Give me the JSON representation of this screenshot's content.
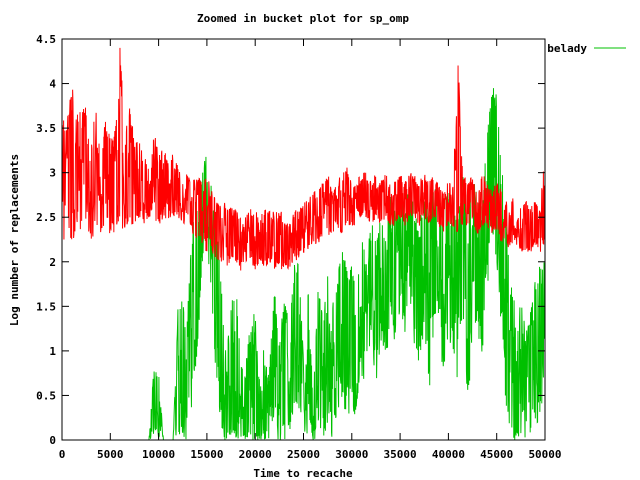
{
  "chart_data": {
    "type": "line",
    "title": "Zoomed in bucket plot for sp_omp",
    "xlabel": "Time to recache",
    "ylabel": "Log number of replacements",
    "xlim": [
      0,
      50000
    ],
    "ylim": [
      0,
      4.5
    ],
    "xticks": [
      "0",
      "5000",
      "10000",
      "15000",
      "20000",
      "25000",
      "30000",
      "35000",
      "40000",
      "45000",
      "50000"
    ],
    "yticks": [
      "0",
      "0.5",
      "1",
      "1.5",
      "2",
      "2.5",
      "3",
      "3.5",
      "4",
      "4.5"
    ],
    "grid": false,
    "legend_position": "top-right",
    "series": [
      {
        "name": "belady",
        "color": "#00c000",
        "x": [
          0,
          500,
          1000,
          1500,
          2000,
          2500,
          3000,
          3500,
          4000,
          4500,
          5000,
          5500,
          6000,
          6500,
          7000,
          7500,
          8000,
          8500,
          9000,
          9500,
          10000,
          10500,
          11000,
          11500,
          12000,
          12500,
          13000,
          13500,
          14000,
          14500,
          15000,
          15500,
          16000,
          16500,
          17000,
          17500,
          18000,
          18500,
          19000,
          19500,
          20000,
          20500,
          21000,
          21500,
          22000,
          22500,
          23000,
          23500,
          24000,
          24500,
          25000,
          25500,
          26000,
          26500,
          27000,
          27500,
          28000,
          28500,
          29000,
          29500,
          30000,
          30500,
          31000,
          31500,
          32000,
          32500,
          33000,
          33500,
          34000,
          34500,
          35000,
          35500,
          36000,
          36500,
          37000,
          37500,
          38000,
          38500,
          39000,
          39500,
          40000,
          40500,
          41000,
          41500,
          42000,
          42500,
          43000,
          43500,
          44000,
          44500,
          45000,
          45500,
          46000,
          46500,
          47000,
          47500,
          48000,
          48500,
          49000,
          49500,
          50000
        ],
        "y": [
          0,
          0,
          0,
          0,
          0,
          0,
          0,
          0,
          0,
          0,
          0,
          0,
          0,
          0,
          0,
          0,
          0,
          0,
          0,
          0.8,
          0.3,
          0,
          0,
          0,
          0.8,
          0.6,
          1.2,
          2.0,
          2.4,
          2.8,
          3.2,
          2.4,
          2.0,
          1.2,
          0.5,
          0.9,
          1.3,
          0.4,
          0.2,
          0.8,
          0.5,
          0.1,
          0.7,
          0.3,
          1.1,
          0.5,
          1.0,
          0.6,
          1.6,
          1.4,
          0.3,
          1.2,
          0.1,
          1.1,
          0.6,
          1.4,
          0.8,
          1.2,
          1.8,
          1.3,
          1.5,
          1.1,
          1.9,
          1.4,
          2.1,
          1.6,
          2.2,
          1.7,
          2.4,
          2.0,
          2.5,
          2.1,
          2.6,
          2.2,
          1.8,
          2.3,
          1.9,
          2.6,
          2.5,
          1.6,
          2.4,
          2.0,
          1.8,
          2.7,
          1.5,
          2.5,
          2.3,
          1.8,
          3.0,
          3.6,
          3.2,
          2.5,
          1.6,
          1.2,
          0.6,
          1.0,
          0.4,
          0.8,
          1.2,
          1.5,
          1.9
        ],
        "y_min": [
          0,
          0,
          0,
          0,
          0,
          0,
          0,
          0,
          0,
          0,
          0,
          0,
          0,
          0,
          0,
          0,
          0,
          0,
          0,
          0,
          0,
          0,
          0,
          0,
          0,
          0,
          0,
          0.4,
          1.0,
          1.8,
          2.2,
          1.6,
          0.6,
          0,
          0,
          0,
          0,
          0,
          0,
          0,
          0,
          0,
          0,
          0,
          0,
          0,
          0,
          0,
          0.2,
          0.3,
          0,
          0.1,
          0,
          0,
          0,
          0.1,
          0,
          0.2,
          0.4,
          0.3,
          0.2,
          0.3,
          0.7,
          0.4,
          1.0,
          0.6,
          1.1,
          0.8,
          1.3,
          1.0,
          1.5,
          1.2,
          1.6,
          1.0,
          0.8,
          1.1,
          0.5,
          1.3,
          1.4,
          0.6,
          1.0,
          0.9,
          0.6,
          1.5,
          0.3,
          1.2,
          1.3,
          0.8,
          1.6,
          2.4,
          2.0,
          1.2,
          0.3,
          0,
          0,
          0,
          0,
          0,
          0,
          0.2,
          0.8
        ],
        "y_max": [
          0,
          0,
          0,
          0,
          0,
          0,
          0,
          0,
          0,
          0,
          0,
          0,
          0,
          0,
          0,
          0,
          0,
          0,
          0,
          0.8,
          0.8,
          0,
          0,
          0,
          1.5,
          1.6,
          1.5,
          2.4,
          2.8,
          3.0,
          3.25,
          2.8,
          2.4,
          1.8,
          0.9,
          1.5,
          1.8,
          0.9,
          0.8,
          1.5,
          1.4,
          0.6,
          1.3,
          0.9,
          1.7,
          1.1,
          1.6,
          1.3,
          2.0,
          2.0,
          0.9,
          1.7,
          0.6,
          1.8,
          1.4,
          2.0,
          1.6,
          1.8,
          2.2,
          1.9,
          2.0,
          1.8,
          2.4,
          2.0,
          2.5,
          2.2,
          2.6,
          2.4,
          2.8,
          2.6,
          2.9,
          2.6,
          2.9,
          2.6,
          2.4,
          2.8,
          2.6,
          2.9,
          2.9,
          2.6,
          2.9,
          2.6,
          2.5,
          3.0,
          2.6,
          3.0,
          2.8,
          2.6,
          3.5,
          4.0,
          3.9,
          3.2,
          2.4,
          1.9,
          1.4,
          1.7,
          1.2,
          1.5,
          1.8,
          2.0,
          2.0
        ]
      },
      {
        "color": "#ff0000",
        "x": [
          0,
          500,
          1000,
          1500,
          2000,
          2500,
          3000,
          3500,
          4000,
          4500,
          5000,
          5500,
          6000,
          6500,
          7000,
          7500,
          8000,
          8500,
          9000,
          9500,
          10000,
          10500,
          11000,
          11500,
          12000,
          12500,
          13000,
          13500,
          14000,
          14500,
          15000,
          15500,
          16000,
          16500,
          17000,
          17500,
          18000,
          18500,
          19000,
          19500,
          20000,
          20500,
          21000,
          21500,
          22000,
          22500,
          23000,
          23500,
          24000,
          24500,
          25000,
          25500,
          26000,
          26500,
          27000,
          27500,
          28000,
          28500,
          29000,
          29500,
          30000,
          30500,
          31000,
          31500,
          32000,
          32500,
          33000,
          33500,
          34000,
          34500,
          35000,
          35500,
          36000,
          36500,
          37000,
          37500,
          38000,
          38500,
          39000,
          39500,
          40000,
          40500,
          41000,
          41500,
          42000,
          42500,
          43000,
          43500,
          44000,
          44500,
          45000,
          45500,
          46000,
          46500,
          47000,
          47500,
          48000,
          48500,
          49000,
          49500,
          50000
        ],
        "y": [
          2.8,
          3.0,
          2.9,
          2.8,
          2.9,
          3.0,
          2.8,
          2.9,
          2.8,
          2.9,
          2.8,
          2.8,
          2.9,
          2.8,
          2.9,
          2.7,
          2.9,
          2.8,
          2.8,
          2.9,
          2.7,
          2.8,
          2.7,
          2.8,
          2.7,
          2.6,
          2.7,
          2.6,
          2.7,
          2.6,
          2.6,
          2.5,
          2.4,
          2.4,
          2.3,
          2.3,
          2.3,
          2.2,
          2.2,
          2.3,
          2.2,
          2.2,
          2.2,
          2.3,
          2.2,
          2.3,
          2.2,
          2.1,
          2.3,
          2.3,
          2.4,
          2.4,
          2.5,
          2.5,
          2.6,
          2.6,
          2.5,
          2.6,
          2.6,
          2.7,
          2.6,
          2.6,
          2.7,
          2.7,
          2.6,
          2.7,
          2.6,
          2.7,
          2.6,
          2.6,
          2.7,
          2.6,
          2.7,
          2.7,
          2.6,
          2.7,
          2.6,
          2.7,
          2.6,
          2.5,
          2.6,
          2.6,
          2.5,
          2.7,
          2.6,
          2.6,
          2.5,
          2.7,
          2.6,
          2.5,
          2.6,
          2.5,
          2.4,
          2.4,
          2.5,
          2.3,
          2.4,
          2.3,
          2.4,
          2.3,
          2.4
        ],
        "y_min": [
          2.3,
          2.1,
          2.2,
          2.3,
          2.3,
          2.4,
          2.2,
          2.3,
          2.3,
          2.4,
          2.3,
          2.3,
          2.4,
          2.3,
          2.4,
          2.4,
          2.5,
          2.4,
          2.5,
          2.5,
          2.4,
          2.5,
          2.4,
          2.5,
          2.5,
          2.4,
          2.5,
          2.3,
          2.2,
          2.2,
          2.1,
          2.1,
          2.0,
          2.0,
          1.9,
          2.0,
          2.0,
          1.9,
          2.0,
          2.0,
          1.9,
          2.0,
          1.9,
          2.0,
          1.9,
          1.9,
          1.9,
          1.9,
          2.0,
          2.0,
          2.1,
          2.1,
          2.2,
          2.2,
          2.3,
          2.3,
          2.3,
          2.4,
          2.3,
          2.4,
          2.4,
          2.4,
          2.5,
          2.5,
          2.4,
          2.5,
          2.4,
          2.5,
          2.4,
          2.4,
          2.5,
          2.4,
          2.5,
          2.5,
          2.4,
          2.5,
          2.4,
          2.5,
          2.4,
          2.3,
          2.4,
          2.4,
          2.3,
          2.4,
          2.4,
          2.4,
          2.3,
          2.4,
          2.4,
          2.3,
          2.3,
          2.2,
          2.2,
          2.1,
          2.2,
          2.1,
          2.1,
          2.1,
          2.2,
          2.1,
          2.2
        ],
        "y_max": [
          3.7,
          3.5,
          4.3,
          3.6,
          3.9,
          3.8,
          3.5,
          3.7,
          3.3,
          3.6,
          3.4,
          3.5,
          4.5,
          3.4,
          3.9,
          3.3,
          3.4,
          3.2,
          3.1,
          3.5,
          3.2,
          3.3,
          3.1,
          3.3,
          3.1,
          2.9,
          3.0,
          2.9,
          3.0,
          2.9,
          3.0,
          2.8,
          2.7,
          2.6,
          2.7,
          2.6,
          2.6,
          2.5,
          2.5,
          2.6,
          2.6,
          2.5,
          2.6,
          2.6,
          2.6,
          2.6,
          2.5,
          2.4,
          2.6,
          2.6,
          2.7,
          2.7,
          2.8,
          2.8,
          2.9,
          3.0,
          2.8,
          2.9,
          3.0,
          3.1,
          2.9,
          2.9,
          3.0,
          3.0,
          2.9,
          3.0,
          2.9,
          3.0,
          2.9,
          2.9,
          3.0,
          2.9,
          3.0,
          3.0,
          2.9,
          3.0,
          2.9,
          3.0,
          2.9,
          2.8,
          2.9,
          2.9,
          4.3,
          3.0,
          2.9,
          3.0,
          2.8,
          3.0,
          2.9,
          2.8,
          2.9,
          2.8,
          2.7,
          2.7,
          2.8,
          2.6,
          2.7,
          2.6,
          2.7,
          2.6,
          3.3
        ]
      }
    ]
  }
}
